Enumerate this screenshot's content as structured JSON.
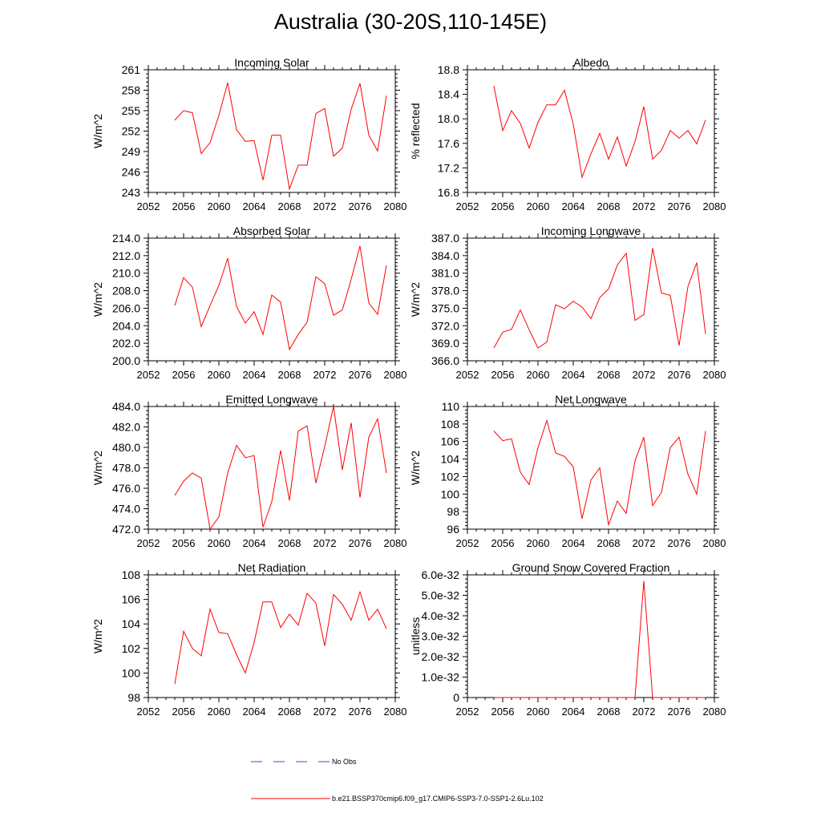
{
  "title": "Australia (30-20S,110-145E)",
  "colors": {
    "model_line": "#ff0000",
    "obs_line": "#0000ff",
    "axis": "#000000"
  },
  "legend": {
    "obs_label": "No Obs",
    "model_label": "b.e21.BSSP370cmip6.f09_g17.CMIP6-SSP3-7.0-SSP1-2.6Lu.102"
  },
  "chart_data": [
    {
      "type": "line",
      "title": "Incoming Solar",
      "ylabel": "W/m^2",
      "xlim": [
        2052,
        2080
      ],
      "ylim": [
        243,
        261
      ],
      "xticks": [
        "2052",
        "2056",
        "2060",
        "2064",
        "2068",
        "2072",
        "2076",
        "2080"
      ],
      "yticks": [
        "243",
        "246",
        "249",
        "252",
        "255",
        "258",
        "261"
      ],
      "x": [
        2055,
        2056,
        2057,
        2058,
        2059,
        2060,
        2061,
        2062,
        2063,
        2064,
        2065,
        2066,
        2067,
        2068,
        2069,
        2070,
        2071,
        2072,
        2073,
        2074,
        2075,
        2076,
        2077,
        2078,
        2079
      ],
      "series": [
        {
          "values": [
            253.6,
            255.0,
            254.7,
            248.7,
            250.3,
            254.3,
            259.1,
            252.2,
            250.5,
            250.6,
            244.8,
            251.4,
            251.4,
            243.5,
            247.0,
            247.0,
            254.6,
            255.3,
            248.3,
            249.5,
            255.2,
            259.0,
            251.4,
            249.1,
            257.2
          ]
        }
      ]
    },
    {
      "type": "line",
      "title": "Albedo",
      "ylabel": "% reflected",
      "xlim": [
        2052,
        2080
      ],
      "ylim": [
        16.8,
        18.9
      ],
      "xticks": [
        "2052",
        "2056",
        "2060",
        "2064",
        "2068",
        "2072",
        "2076",
        "2080"
      ],
      "yticks": [
        "16.8",
        "17.2",
        "17.6",
        "18.0",
        "18.4",
        "18.8"
      ],
      "x": [
        2055,
        2056,
        2057,
        2058,
        2059,
        2060,
        2061,
        2062,
        2063,
        2064,
        2065,
        2066,
        2067,
        2068,
        2069,
        2070,
        2071,
        2072,
        2073,
        2074,
        2075,
        2076,
        2077,
        2078,
        2079
      ],
      "series": [
        {
          "values": [
            18.62,
            17.86,
            18.2,
            17.98,
            17.56,
            18.0,
            18.3,
            18.3,
            18.55,
            17.97,
            17.06,
            17.46,
            17.81,
            17.37,
            17.75,
            17.25,
            17.67,
            18.27,
            17.37,
            17.52,
            17.86,
            17.73,
            17.86,
            17.63,
            18.04
          ]
        }
      ]
    },
    {
      "type": "line",
      "title": "Absorbed Solar",
      "ylabel": "W/m^2",
      "xlim": [
        2052,
        2080
      ],
      "ylim": [
        200,
        214
      ],
      "xticks": [
        "2052",
        "2056",
        "2060",
        "2064",
        "2068",
        "2072",
        "2076",
        "2080"
      ],
      "yticks": [
        "200.0",
        "202.0",
        "204.0",
        "206.0",
        "208.0",
        "210.0",
        "212.0",
        "214.0"
      ],
      "x": [
        2055,
        2056,
        2057,
        2058,
        2059,
        2060,
        2061,
        2062,
        2063,
        2064,
        2065,
        2066,
        2067,
        2068,
        2069,
        2070,
        2071,
        2072,
        2073,
        2074,
        2075,
        2076,
        2077,
        2078,
        2079
      ],
      "series": [
        {
          "values": [
            206.3,
            209.5,
            208.4,
            203.9,
            206.3,
            208.6,
            211.7,
            206.2,
            204.3,
            205.6,
            203.0,
            207.5,
            206.7,
            201.3,
            203.0,
            204.4,
            209.6,
            208.8,
            205.2,
            205.8,
            209.3,
            213.1,
            206.6,
            205.3,
            210.9
          ]
        }
      ]
    },
    {
      "type": "line",
      "title": "Incoming Longwave",
      "ylabel": "W/m^2",
      "xlim": [
        2052,
        2080
      ],
      "ylim": [
        366,
        387
      ],
      "xticks": [
        "2052",
        "2056",
        "2060",
        "2064",
        "2068",
        "2072",
        "2076",
        "2080"
      ],
      "yticks": [
        "366.0",
        "369.0",
        "372.0",
        "375.0",
        "378.0",
        "381.0",
        "384.0",
        "387.0"
      ],
      "x": [
        2055,
        2056,
        2057,
        2058,
        2059,
        2060,
        2061,
        2062,
        2063,
        2064,
        2065,
        2066,
        2067,
        2068,
        2069,
        2070,
        2071,
        2072,
        2073,
        2074,
        2075,
        2076,
        2077,
        2078,
        2079
      ],
      "series": [
        {
          "values": [
            368.2,
            370.9,
            371.4,
            374.7,
            371.3,
            368.2,
            369.2,
            375.6,
            374.9,
            376.2,
            375.2,
            373.2,
            376.8,
            378.3,
            382.4,
            384.4,
            372.9,
            373.9,
            385.3,
            377.6,
            377.2,
            368.6,
            378.7,
            382.8,
            370.6
          ]
        }
      ]
    },
    {
      "type": "line",
      "title": "Emitted Longwave",
      "ylabel": "W/m^2",
      "xlim": [
        2052,
        2080
      ],
      "ylim": [
        472,
        484
      ],
      "xticks": [
        "2052",
        "2056",
        "2060",
        "2064",
        "2068",
        "2072",
        "2076",
        "2080"
      ],
      "yticks": [
        "472.0",
        "474.0",
        "476.0",
        "478.0",
        "480.0",
        "482.0",
        "484.0"
      ],
      "x": [
        2055,
        2056,
        2057,
        2058,
        2059,
        2060,
        2061,
        2062,
        2063,
        2064,
        2065,
        2066,
        2067,
        2068,
        2069,
        2070,
        2071,
        2072,
        2073,
        2074,
        2075,
        2076,
        2077,
        2078,
        2079
      ],
      "series": [
        {
          "values": [
            475.3,
            476.7,
            477.5,
            477.0,
            472.0,
            473.2,
            477.5,
            480.2,
            479.0,
            479.2,
            472.2,
            474.7,
            479.7,
            474.8,
            481.6,
            482.1,
            476.5,
            480.1,
            484.0,
            477.8,
            482.4,
            475.1,
            481.0,
            482.8,
            477.5
          ]
        }
      ]
    },
    {
      "type": "line",
      "title": "Net Longwave",
      "ylabel": "W/m^2",
      "xlim": [
        2052,
        2080
      ],
      "ylim": [
        96,
        110
      ],
      "xticks": [
        "2052",
        "2056",
        "2060",
        "2064",
        "2068",
        "2072",
        "2076",
        "2080"
      ],
      "yticks": [
        "96",
        "98",
        "100",
        "102",
        "104",
        "106",
        "108",
        "110"
      ],
      "x": [
        2055,
        2056,
        2057,
        2058,
        2059,
        2060,
        2061,
        2062,
        2063,
        2064,
        2065,
        2066,
        2067,
        2068,
        2069,
        2070,
        2071,
        2072,
        2073,
        2074,
        2075,
        2076,
        2077,
        2078,
        2079
      ],
      "series": [
        {
          "values": [
            107.2,
            106.1,
            106.3,
            102.5,
            101.1,
            105.3,
            108.4,
            104.7,
            104.3,
            103.1,
            97.2,
            101.6,
            103.0,
            96.5,
            99.2,
            97.8,
            103.8,
            106.5,
            98.7,
            100.2,
            105.3,
            106.5,
            102.3,
            100.0,
            107.2
          ]
        }
      ]
    },
    {
      "type": "line",
      "title": "Net Radiation",
      "ylabel": "W/m^2",
      "xlim": [
        2052,
        2080
      ],
      "ylim": [
        98,
        108
      ],
      "xticks": [
        "2052",
        "2056",
        "2060",
        "2064",
        "2068",
        "2072",
        "2076",
        "2080"
      ],
      "yticks": [
        "98",
        "100",
        "102",
        "104",
        "106",
        "108"
      ],
      "x": [
        2055,
        2056,
        2057,
        2058,
        2059,
        2060,
        2061,
        2062,
        2063,
        2064,
        2065,
        2066,
        2067,
        2068,
        2069,
        2070,
        2071,
        2072,
        2073,
        2074,
        2075,
        2076,
        2077,
        2078,
        2079
      ],
      "series": [
        {
          "values": [
            99.1,
            103.4,
            102.0,
            101.4,
            105.2,
            103.3,
            103.2,
            101.5,
            100.0,
            102.5,
            105.8,
            105.8,
            103.7,
            104.8,
            103.9,
            106.5,
            105.7,
            102.2,
            106.4,
            105.6,
            104.3,
            106.6,
            104.3,
            105.2,
            103.6
          ]
        }
      ]
    },
    {
      "type": "line",
      "title": "Ground Snow Covered Fraction",
      "ylabel": "unitless",
      "xlim": [
        2052,
        2080
      ],
      "ylim": [
        0,
        6e-32
      ],
      "xticks": [
        "2052",
        "2056",
        "2060",
        "2064",
        "2068",
        "2072",
        "2076",
        "2080"
      ],
      "yticks": [
        "0",
        "1.0e-32",
        "2.0e-32",
        "3.0e-32",
        "4.0e-32",
        "5.0e-32",
        "6.0e-32"
      ],
      "x": [
        2055,
        2056,
        2057,
        2058,
        2059,
        2060,
        2061,
        2062,
        2063,
        2064,
        2065,
        2066,
        2067,
        2068,
        2069,
        2070,
        2071,
        2072,
        2073,
        2074,
        2075,
        2076,
        2077,
        2078,
        2079
      ],
      "series": [
        {
          "values": [
            0,
            0,
            0,
            0,
            0,
            0,
            0,
            0,
            0,
            0,
            0,
            0,
            0,
            0,
            0,
            0,
            0,
            5.7e-32,
            0,
            0,
            0,
            0,
            0,
            0,
            0
          ]
        }
      ]
    }
  ]
}
